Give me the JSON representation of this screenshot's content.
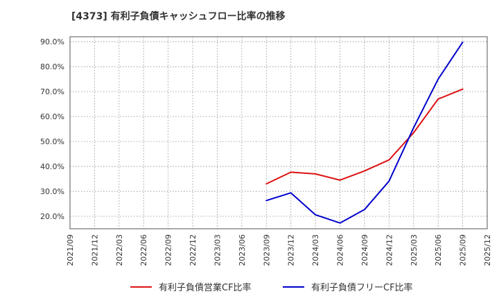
{
  "chart_data": {
    "type": "line",
    "title": "[4373]  有利子負債キャッシュフロー比率の推移",
    "xlabel": "",
    "ylabel": "",
    "ylim": [
      15.0,
      92.0
    ],
    "yticks": [
      20,
      30,
      40,
      50,
      60,
      70,
      80,
      90
    ],
    "ytick_labels": [
      "20.0%",
      "30.0%",
      "40.0%",
      "50.0%",
      "60.0%",
      "70.0%",
      "80.0%",
      "90.0%"
    ],
    "categories": [
      "2021/09",
      "2021/12",
      "2022/03",
      "2022/06",
      "2022/09",
      "2022/12",
      "2023/03",
      "2023/06",
      "2023/09",
      "2023/12",
      "2024/03",
      "2024/06",
      "2024/09",
      "2024/12",
      "2025/03",
      "2025/06",
      "2025/09",
      "2025/12"
    ],
    "grid": true,
    "legend_position": "bottom",
    "series": [
      {
        "name": "有利子負債営業CF比率",
        "color": "#dd1111",
        "values": [
          null,
          null,
          null,
          null,
          null,
          null,
          null,
          null,
          33.0,
          37.7,
          37.0,
          34.5,
          38.2,
          42.6,
          53.5,
          67.0,
          71.0,
          null
        ]
      },
      {
        "name": "有利子負債フリーCF比率",
        "color": "#0000cc",
        "values": [
          null,
          null,
          null,
          null,
          null,
          null,
          null,
          null,
          26.3,
          29.4,
          20.6,
          17.3,
          22.7,
          34.1,
          55.5,
          75.0,
          89.8,
          null
        ]
      }
    ]
  }
}
